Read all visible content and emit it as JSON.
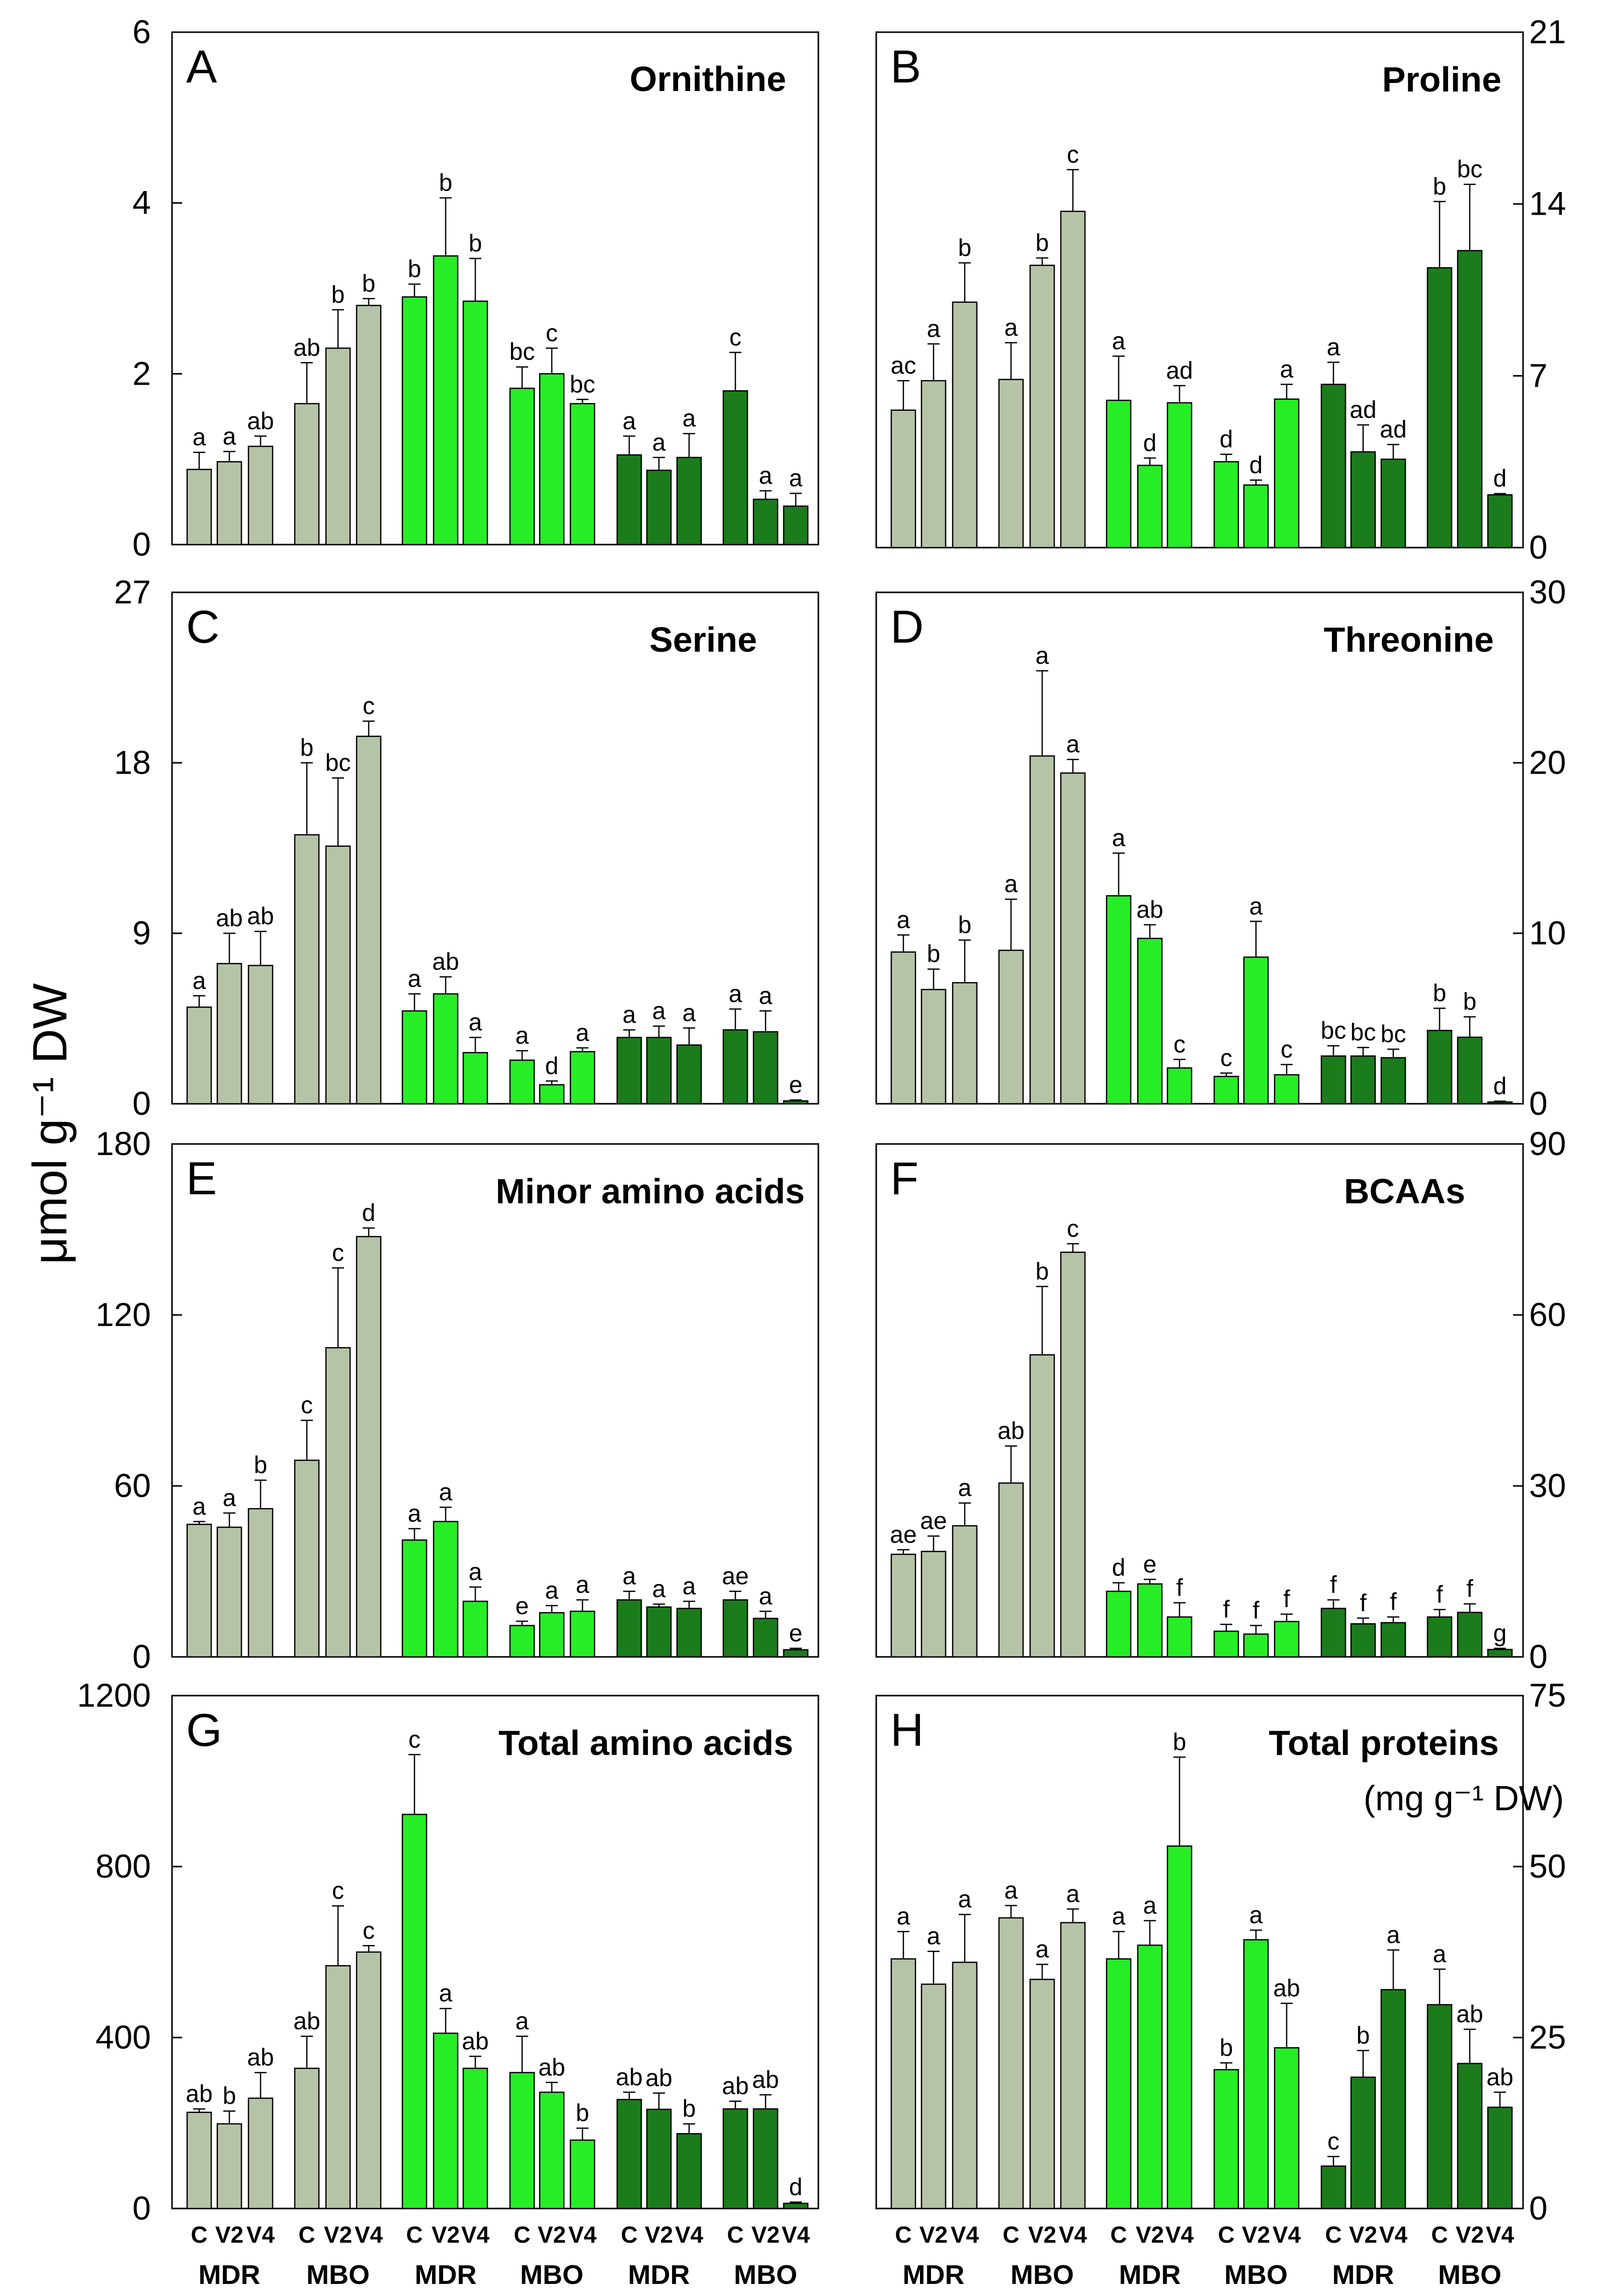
{
  "y_axis_label": "μmol g⁻¹ DW",
  "x_axis": {
    "categories": [
      "C",
      "V2",
      "V4"
    ],
    "groups": [
      "MDR",
      "MBO",
      "MDR",
      "MBO",
      "MDR",
      "MBO"
    ]
  },
  "colors": {
    "series_fill": [
      "#b5c4a7",
      "#26ed26",
      "#1b7c1b"
    ],
    "stroke": "#000000"
  },
  "chart_data": [
    {
      "type": "bar",
      "panel_letter": "A",
      "title": "Ornithine",
      "subtitle": "",
      "ylim": [
        0,
        6
      ],
      "yticks": [
        0,
        2,
        4,
        6
      ],
      "axis_side": "left",
      "values": [
        0.88,
        0.97,
        1.15,
        1.65,
        2.3,
        2.8,
        2.9,
        3.38,
        2.85,
        1.83,
        2.0,
        1.65,
        1.05,
        0.87,
        1.02,
        1.8,
        0.53,
        0.45
      ],
      "errors": [
        0.2,
        0.12,
        0.12,
        0.48,
        0.45,
        0.08,
        0.15,
        0.68,
        0.5,
        0.25,
        0.3,
        0.05,
        0.22,
        0.15,
        0.28,
        0.45,
        0.1,
        0.15
      ],
      "letters": [
        "a",
        "a",
        "ab",
        "ab",
        "b",
        "b",
        "b",
        "b",
        "b",
        "bc",
        "c",
        "bc",
        "a",
        "a",
        "a",
        "c",
        "a",
        "a"
      ]
    },
    {
      "type": "bar",
      "panel_letter": "B",
      "title": "Proline",
      "subtitle": "",
      "ylim": [
        0,
        21
      ],
      "yticks": [
        0,
        7,
        14,
        21
      ],
      "axis_side": "right",
      "values": [
        5.6,
        6.8,
        10.0,
        6.85,
        11.5,
        13.7,
        6.0,
        3.35,
        5.9,
        3.5,
        2.55,
        6.05,
        6.65,
        3.9,
        3.6,
        11.4,
        12.1,
        2.15
      ],
      "errors": [
        1.2,
        1.5,
        1.6,
        1.5,
        0.3,
        1.7,
        1.8,
        0.3,
        0.7,
        0.3,
        0.2,
        0.6,
        0.9,
        1.1,
        0.6,
        2.7,
        2.7,
        0.05
      ],
      "letters": [
        "ac",
        "a",
        "b",
        "a",
        "b",
        "c",
        "a",
        "d",
        "ad",
        "d",
        "d",
        "a",
        "a",
        "ad",
        "ad",
        "b",
        "bc",
        "d"
      ]
    },
    {
      "type": "bar",
      "panel_letter": "C",
      "title": "Serine",
      "subtitle": "",
      "ylim": [
        0,
        27
      ],
      "yticks": [
        0,
        9,
        18,
        27
      ],
      "axis_side": "left",
      "values": [
        5.1,
        7.4,
        7.3,
        14.2,
        13.6,
        19.4,
        4.9,
        5.8,
        2.7,
        2.3,
        1.0,
        2.75,
        3.5,
        3.5,
        3.1,
        3.9,
        3.8,
        0.15
      ],
      "errors": [
        0.6,
        1.6,
        1.8,
        3.8,
        3.6,
        0.8,
        0.9,
        0.9,
        0.8,
        0.5,
        0.2,
        0.2,
        0.4,
        0.6,
        0.9,
        1.1,
        1.1,
        0.05
      ],
      "letters": [
        "a",
        "ab",
        "ab",
        "b",
        "bc",
        "c",
        "a",
        "ab",
        "a",
        "a",
        "d",
        "a",
        "a",
        "a",
        "a",
        "a",
        "a",
        "e"
      ]
    },
    {
      "type": "bar",
      "panel_letter": "D",
      "title": "Threonine",
      "subtitle": "",
      "ylim": [
        0,
        30
      ],
      "yticks": [
        0,
        10,
        20,
        30
      ],
      "axis_side": "right",
      "values": [
        8.9,
        6.7,
        7.1,
        9.0,
        20.4,
        19.4,
        12.2,
        9.7,
        2.1,
        1.6,
        8.6,
        1.7,
        2.8,
        2.8,
        2.7,
        4.3,
        3.9,
        0.1
      ],
      "errors": [
        1.0,
        1.2,
        2.5,
        3.0,
        5.0,
        0.8,
        2.5,
        0.8,
        0.5,
        0.2,
        2.1,
        0.6,
        0.6,
        0.5,
        0.5,
        1.3,
        1.2,
        0.05
      ],
      "letters": [
        "a",
        "b",
        "b",
        "a",
        "a",
        "a",
        "a",
        "ab",
        "c",
        "c",
        "a",
        "c",
        "bc",
        "bc",
        "bc",
        "b",
        "b",
        "d"
      ]
    },
    {
      "type": "bar",
      "panel_letter": "E",
      "title": "Minor amino acids",
      "subtitle": "",
      "ylim": [
        0,
        180
      ],
      "yticks": [
        0,
        60,
        120,
        180
      ],
      "axis_side": "left",
      "values": [
        46.5,
        45.5,
        52.0,
        69.0,
        108.5,
        147.5,
        41.0,
        47.5,
        19.5,
        11.0,
        15.5,
        16.0,
        20.0,
        17.5,
        17.0,
        20.0,
        13.5,
        2.5
      ],
      "errors": [
        1.0,
        5.0,
        10.0,
        14.0,
        28.0,
        3.0,
        4.0,
        5.0,
        5.0,
        1.5,
        2.5,
        4.0,
        3.0,
        1.0,
        2.5,
        3.0,
        2.5,
        0.5
      ],
      "letters": [
        "a",
        "a",
        "b",
        "c",
        "c",
        "d",
        "a",
        "a",
        "a",
        "e",
        "a",
        "a",
        "a",
        "a",
        "a",
        "ae",
        "a",
        "e"
      ]
    },
    {
      "type": "bar",
      "panel_letter": "F",
      "title": "BCAAs",
      "subtitle": "",
      "ylim": [
        0,
        90
      ],
      "yticks": [
        0,
        30,
        60,
        90
      ],
      "axis_side": "right",
      "values": [
        18.0,
        18.5,
        23.0,
        30.5,
        53.0,
        71.0,
        11.5,
        12.8,
        7.0,
        4.5,
        4.0,
        6.2,
        8.5,
        5.8,
        6.0,
        7.0,
        7.8,
        1.3
      ],
      "errors": [
        0.8,
        2.7,
        4.0,
        6.5,
        12.0,
        1.5,
        1.5,
        0.8,
        2.5,
        1.2,
        1.5,
        1.3,
        1.5,
        1.0,
        1.0,
        1.3,
        1.5,
        0.2
      ],
      "letters": [
        "ae",
        "ae",
        "a",
        "ab",
        "b",
        "c",
        "d",
        "e",
        "f",
        "f",
        "f",
        "f",
        "f",
        "f",
        "f",
        "f",
        "f",
        "g"
      ]
    },
    {
      "type": "bar",
      "panel_letter": "G",
      "title": "Total amino acids",
      "subtitle": "",
      "ylim": [
        0,
        1200
      ],
      "yticks": [
        0,
        400,
        800,
        1200
      ],
      "axis_side": "left",
      "values": [
        225,
        198,
        258,
        328,
        568,
        600,
        922,
        410,
        328,
        318,
        272,
        160,
        255,
        232,
        175,
        233,
        233,
        12
      ],
      "errors": [
        8,
        30,
        60,
        75,
        140,
        15,
        140,
        58,
        28,
        85,
        23,
        28,
        17,
        38,
        23,
        18,
        33,
        3
      ],
      "letters": [
        "ab",
        "b",
        "ab",
        "ab",
        "c",
        "c",
        "c",
        "a",
        "ab",
        "a",
        "ab",
        "b",
        "ab",
        "ab",
        "b",
        "ab",
        "ab",
        "d"
      ]
    },
    {
      "type": "bar",
      "panel_letter": "H",
      "title": "Total proteins",
      "subtitle": "(mg g⁻¹ DW)",
      "ylim": [
        0,
        75
      ],
      "yticks": [
        0,
        25,
        50,
        75
      ],
      "axis_side": "right",
      "values": [
        36.5,
        32.8,
        36.0,
        42.5,
        33.5,
        41.8,
        36.5,
        38.5,
        53.0,
        20.3,
        39.3,
        23.5,
        6.2,
        19.2,
        32.0,
        29.8,
        21.2,
        14.8
      ],
      "errors": [
        4.0,
        4.8,
        7.0,
        1.8,
        2.2,
        2.0,
        4.0,
        3.6,
        13.0,
        1.0,
        1.4,
        6.5,
        1.4,
        3.9,
        5.8,
        5.2,
        5.0,
        2.2
      ],
      "letters": [
        "a",
        "a",
        "a",
        "a",
        "a",
        "a",
        "a",
        "a",
        "b",
        "b",
        "a",
        "ab",
        "c",
        "b",
        "a",
        "a",
        "ab",
        "ab"
      ]
    }
  ]
}
